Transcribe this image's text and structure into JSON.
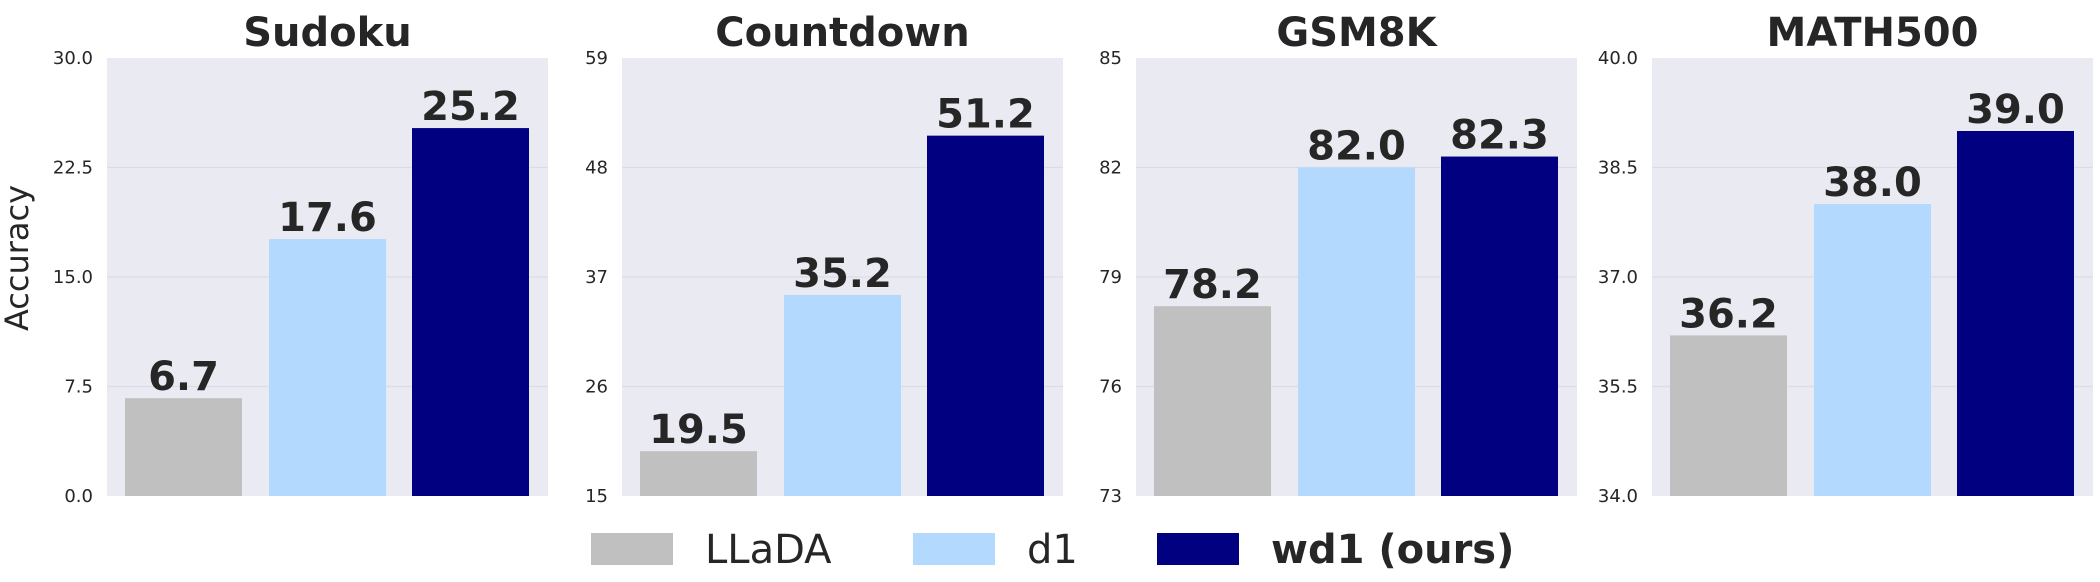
{
  "chart_data": {
    "type": "bar",
    "ylabel": "Accuracy",
    "series_names": [
      "LLaDA",
      "d1",
      "wd1 (ours)"
    ],
    "colors": [
      "#c0c0c0",
      "#b3d9ff",
      "#000080"
    ],
    "legend": {
      "placement": "bottom-center",
      "items": [
        {
          "label": "LLaDA",
          "color": "#c0c0c0",
          "bold": false
        },
        {
          "label": "d1",
          "color": "#b3d9ff",
          "bold": false
        },
        {
          "label": "wd1 (ours)",
          "color": "#000080",
          "bold": true
        }
      ]
    },
    "grid": true,
    "panels": [
      {
        "title": "Sudoku",
        "values": [
          6.7,
          17.6,
          25.2
        ],
        "value_labels": [
          "6.7",
          "17.6",
          "25.2"
        ],
        "ylim": [
          0,
          30
        ],
        "yticks": [
          0,
          7.5,
          15,
          22.5,
          30
        ],
        "ytick_labels": [
          "0.0",
          "7.5",
          "15.0",
          "22.5",
          "30.0"
        ]
      },
      {
        "title": "Countdown",
        "values": [
          19.5,
          35.2,
          51.2
        ],
        "value_labels": [
          "19.5",
          "35.2",
          "51.2"
        ],
        "ylim": [
          15,
          59
        ],
        "yticks": [
          15,
          26,
          37,
          48,
          59
        ],
        "ytick_labels": [
          "15",
          "26",
          "37",
          "48",
          "59"
        ]
      },
      {
        "title": "GSM8K",
        "values": [
          78.2,
          82.0,
          82.3
        ],
        "value_labels": [
          "78.2",
          "82.0",
          "82.3"
        ],
        "ylim": [
          73,
          85
        ],
        "yticks": [
          73,
          76,
          79,
          82,
          85
        ],
        "ytick_labels": [
          "73",
          "76",
          "79",
          "82",
          "85"
        ]
      },
      {
        "title": "MATH500",
        "values": [
          36.2,
          38.0,
          39.0
        ],
        "value_labels": [
          "36.2",
          "38.0",
          "39.0"
        ],
        "ylim": [
          34,
          40
        ],
        "yticks": [
          34,
          35.5,
          37,
          38.5,
          40
        ],
        "ytick_labels": [
          "34.0",
          "35.5",
          "37.0",
          "38.5",
          "40.0"
        ]
      }
    ]
  }
}
